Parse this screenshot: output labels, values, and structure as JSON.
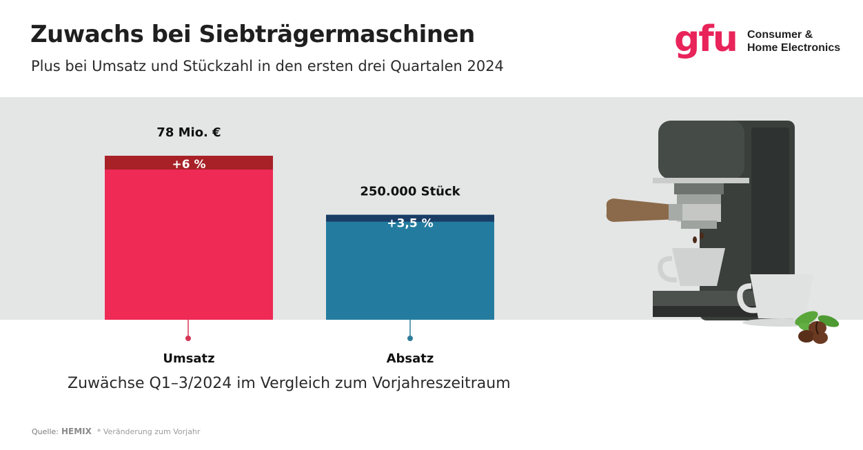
{
  "header": {
    "title": "Zuwachs bei Siebträgermaschinen",
    "subtitle": "Plus bei Umsatz und Stückzahl in den ersten drei Quartalen 2024"
  },
  "logo": {
    "mark": "gfu",
    "line1": "Consumer &",
    "line2": "Home Electronics"
  },
  "chart_data": {
    "type": "bar",
    "categories": [
      "Umsatz",
      "Absatz"
    ],
    "series": [
      {
        "values": [
          78,
          250000
        ],
        "value_labels": [
          "78 Mio. €",
          "250.000 Stück"
        ],
        "change_labels": [
          "+6 %",
          "+3,5 %"
        ],
        "change_pct": [
          6,
          3.5
        ],
        "relative_height": [
          1.0,
          0.64
        ]
      }
    ],
    "caption": "Zuwächse Q1–3/2024 im Vergleich zum Vorjahreszeitraum",
    "colors": {
      "umsatz_bar": "#ee2a55",
      "umsatz_cap": "#a72127",
      "absatz_bar": "#237c9f",
      "absatz_cap": "#1a3d66",
      "band": "#e4e5e5"
    }
  },
  "footer": {
    "source_label": "Quelle:",
    "source_name": "HEMIX",
    "note": "* Veränderung zum Vorjahr"
  },
  "illustration": {
    "icon": "espresso-machine-icon"
  }
}
